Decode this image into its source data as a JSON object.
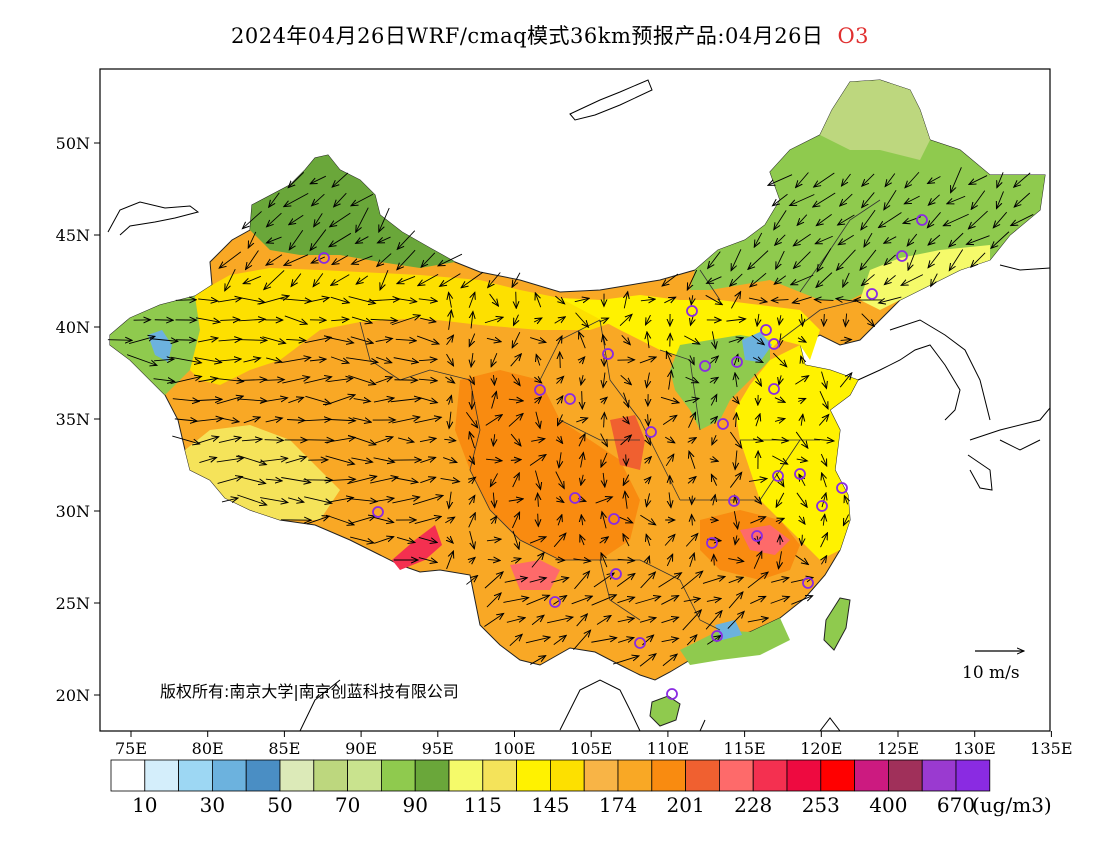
{
  "header": {
    "title": "2024年04月26日WRF/cmaq模式36km预报产品:04月26日",
    "species": "O3"
  },
  "map": {
    "lat_labels": [
      "50N",
      "45N",
      "40N",
      "35N",
      "30N",
      "25N",
      "20N"
    ],
    "lon_labels": [
      "75E",
      "80E",
      "85E",
      "90E",
      "95E",
      "100E",
      "105E",
      "110E",
      "115E",
      "120E",
      "125E",
      "130E",
      "135E"
    ],
    "copyright": "版权所有:南京大学|南京创蓝科技有限公司",
    "vector_scale_label": "10 m/s"
  },
  "legend": {
    "colors": [
      "#ffffff",
      "#d4eefb",
      "#9dd7f3",
      "#6cb2de",
      "#4a8ec4",
      "#dceab8",
      "#bdd77e",
      "#c9e38e",
      "#8fca4e",
      "#6aa73a",
      "#f5fa6a",
      "#f4e35a",
      "#fff200",
      "#fde000",
      "#f8b446",
      "#f9a825",
      "#f98b10",
      "#f06030",
      "#fe6a6a",
      "#f43050",
      "#ee0a40",
      "#ff0000",
      "#cc1a80",
      "#a0305a",
      "#9a3ad0",
      "#8a2be2"
    ],
    "tick_labels": [
      "10",
      "30",
      "50",
      "70",
      "90",
      "115",
      "145",
      "174",
      "201",
      "228",
      "253",
      "400",
      "670"
    ],
    "unit": "(ug/m3)"
  }
}
